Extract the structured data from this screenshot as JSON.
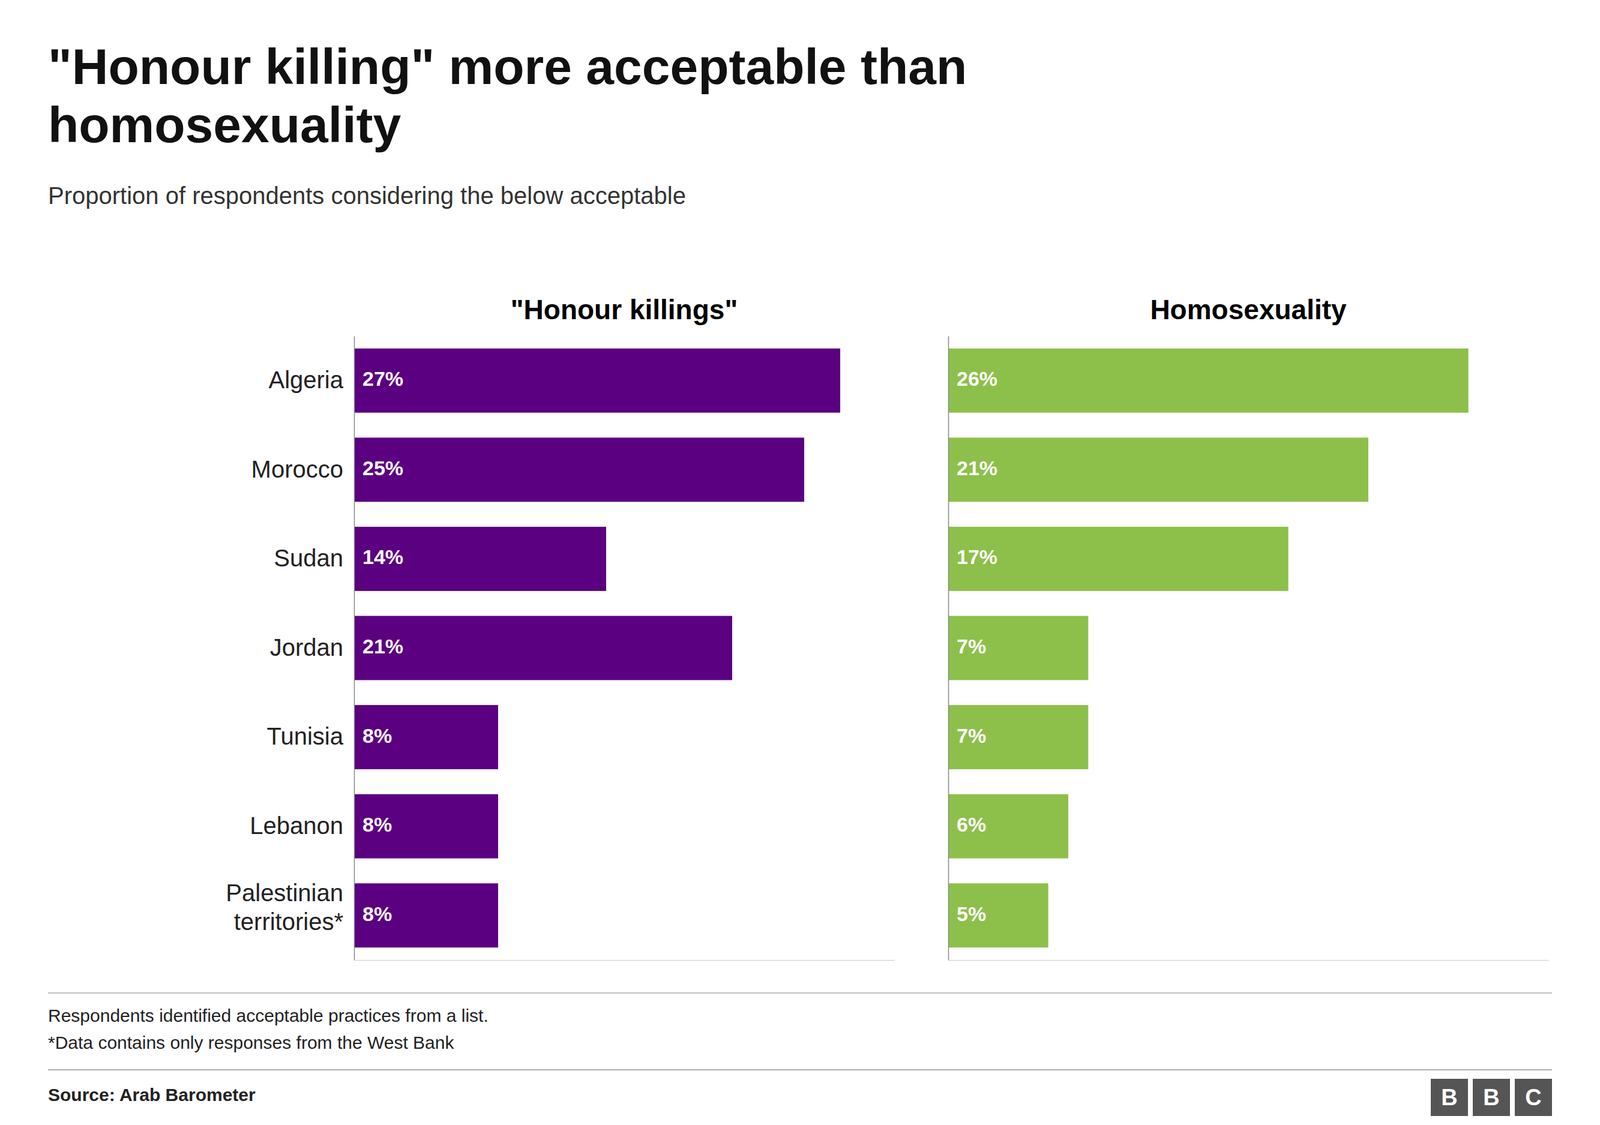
{
  "title": "\"Honour killing\" more acceptable than\nhomosexuality",
  "subtitle": "Proportion of respondents considering the below acceptable",
  "annotations": [
    "Respondents identified acceptable practices from a list.",
    "*Data contains only responses from the West Bank",
    "Source: Arab Barometer",
    "BBC"
  ],
  "chart_data": [
    {
      "type": "bar",
      "orientation": "horizontal",
      "title": "\"Honour killings\"",
      "categories": [
        "Algeria",
        "Morocco",
        "Sudan",
        "Jordan",
        "Tunisia",
        "Lebanon",
        "Palestinian\nterritories*"
      ],
      "values": [
        27,
        25,
        14,
        21,
        8,
        8,
        8
      ],
      "value_labels": [
        "27%",
        "25%",
        "14%",
        "21%",
        "8%",
        "8%",
        "8%"
      ],
      "data_labels": true,
      "color": "#5B0080",
      "xlim": [
        0,
        30
      ],
      "tick_labels": "y",
      "grid": false
    },
    {
      "type": "bar",
      "orientation": "horizontal",
      "title": "Homosexuality",
      "categories": [
        "Algeria",
        "Morocco",
        "Sudan",
        "Jordan",
        "Tunisia",
        "Lebanon",
        "Palestinian\nterritories*"
      ],
      "values": [
        26,
        21,
        17,
        7,
        7,
        6,
        5
      ],
      "value_labels": [
        "26%",
        "21%",
        "17%",
        "7%",
        "7%",
        "6%",
        "5%"
      ],
      "data_labels": true,
      "color": "#8DC04A",
      "xlim": [
        0,
        30
      ],
      "tick_labels": false,
      "grid": false
    }
  ]
}
